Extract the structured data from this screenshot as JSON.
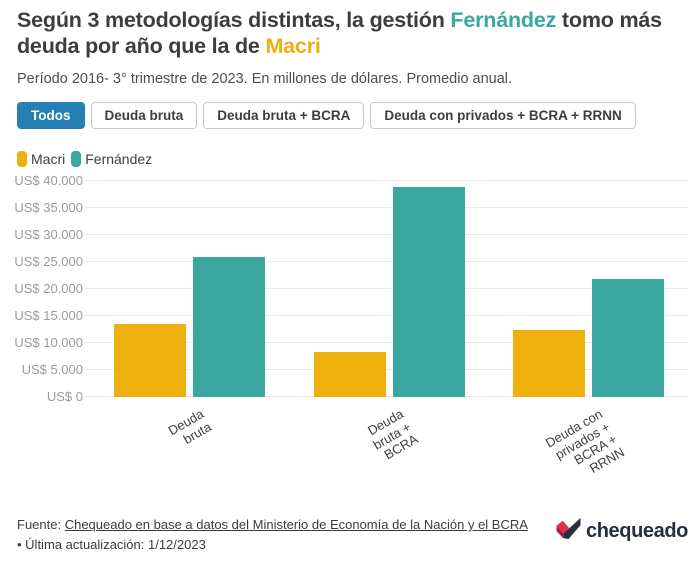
{
  "colors": {
    "dark_text": "#3D3D3D",
    "teal": "#3AA7A1",
    "yellow": "#EDB00F",
    "active_tab_blue": "#2480B3",
    "grid": "#E9E9E9",
    "tick_text": "#9B9B9B",
    "logo_navy": "#25303C",
    "logo_red": "#DB2F4B"
  },
  "header": {
    "title_parts": [
      {
        "text": "Según 3 metodologías distintas, la gestión ",
        "color": "#3D3D3D"
      },
      {
        "text": "Fernández",
        "color": "#3AA7A1"
      },
      {
        "text": " tomo más deuda por año que la de ",
        "color": "#3D3D3D"
      },
      {
        "text": "Macri",
        "color": "#EDB00F"
      }
    ],
    "subtitle": "Período 2016- 3° trimestre de 2023. En millones de dólares. Promedio anual."
  },
  "filters": [
    {
      "label": "Todos",
      "active": true
    },
    {
      "label": "Deuda bruta",
      "active": false
    },
    {
      "label": "Deuda bruta + BCRA",
      "active": false
    },
    {
      "label": "Deuda con privados + BCRA + RRNN",
      "active": false
    }
  ],
  "legend": [
    {
      "label": "Macri",
      "color": "#EDB00F"
    },
    {
      "label": "Fernández",
      "color": "#3AA7A1"
    }
  ],
  "chart_data": {
    "type": "bar",
    "title": "Según 3 metodologías distintas, la gestión Fernández tomo más deuda por año que la de Macri",
    "subtitle": "Período 2016- 3° trimestre de 2023. En millones de dólares. Promedio anual.",
    "categories": [
      "Deuda bruta",
      "Deuda bruta + BCRA",
      "Deuda con privados + BCRA + RRNN"
    ],
    "category_label_lines": [
      [
        "Deuda",
        "bruta"
      ],
      [
        "Deuda",
        "bruta +",
        "BCRA"
      ],
      [
        "Deuda con",
        "privados +",
        "BCRA +",
        "RRNN"
      ]
    ],
    "series": [
      {
        "name": "Macri",
        "color": "#EDB00F",
        "values": [
          13500,
          8200,
          12300
        ]
      },
      {
        "name": "Fernández",
        "color": "#3AA7A1",
        "values": [
          25900,
          38800,
          21700
        ]
      }
    ],
    "ylabel": "",
    "xlabel": "",
    "ylim": [
      0,
      40000
    ],
    "ytick_step": 5000,
    "ytick_labels": [
      "US$ 0",
      "US$ 5.000",
      "US$ 10.000",
      "US$ 15.000",
      "US$ 20.000",
      "US$ 25.000",
      "US$ 30.000",
      "US$ 35.000",
      "US$ 40.000"
    ],
    "grid": true,
    "legend_position": "top-left"
  },
  "footer": {
    "source_prefix": "Fuente: ",
    "source_link": "Chequeado en base a datos del Ministerio de Economía de la Nación y el BCRA",
    "updated": "• Última actualización: 1/12/2023",
    "logo_text": "chequeado"
  }
}
